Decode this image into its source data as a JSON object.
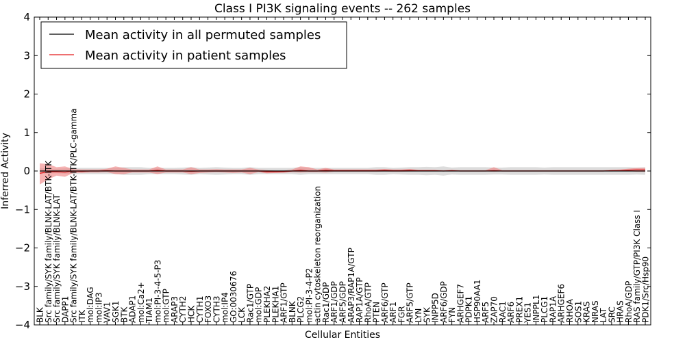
{
  "chart_data": {
    "type": "line",
    "title": "Class I PI3K signaling events -- 262 samples",
    "xlabel": "Cellular Entities",
    "ylabel": "Inferred Activity",
    "ylim": [
      -4,
      4
    ],
    "yticks": [
      -4,
      -3,
      -2,
      -1,
      0,
      1,
      2,
      3,
      4
    ],
    "grid": false,
    "legend_position": "top-left",
    "colors": {
      "permuted_line": "#000000",
      "patient_line": "#e41a1c",
      "permuted_band": "#c0c0c0",
      "patient_band": "#f08080"
    },
    "categories": [
      "BLK",
      "Src family/SYK family/BLNK-LAT/BTK-ITK",
      "Src family/SYK family/BLNK-LAT",
      "DAPP1",
      "Src family/SYK family/BLNK-LAT/BTK-ITK/PLC-gamma",
      "ITK",
      "mol:DAG",
      "mol:IP3",
      "VAV1",
      "SGK1",
      "BTK",
      "ADAP1",
      "mol:Ca2+",
      "TIAM1",
      "mol:PI-3-4-5-P3",
      "mol:GTP",
      "ARAP3",
      "CYTH2",
      "HCK",
      "CYTH1",
      "FOXO3",
      "CYTH3",
      "mol:IP4",
      "GO:0030676",
      "LCK",
      "Rac1/GTP",
      "mol:GDP",
      "PLEKHA2",
      "PLEKHA1",
      "ARF1/GTP",
      "BLNK",
      "PLCG2",
      "mol:PI-3-4-P2",
      "actin cytoskeleton reorganization",
      "Rac1/GDP",
      "ARF1/GDP",
      "ARF5/GDP",
      "ARAP3/RAP1A/GTP",
      "RAP1A/GTP",
      "RhoA/GTP",
      "PTEN",
      "ARF6/GTP",
      "ARF1",
      "FGR",
      "ARF5/GTP",
      "LYN",
      "SYK",
      "INPP5D",
      "ARF6/GDP",
      "FYN",
      "ARHGEF7",
      "PDPK1",
      "HSP90AA1",
      "ARF5",
      "ZAP70",
      "RAC1",
      "ARF6",
      "PREX1",
      "YES1",
      "INPPL1",
      "PLCG1",
      "RAP1A",
      "ARHGEF6",
      "RHOA",
      "SOS1",
      "KRAS",
      "NRAS",
      "LAT",
      "SRC",
      "HRAS",
      "RhoA/GDP",
      "RAS family/GTP/PI3K Class I",
      "PDK1/Src/Hsp90"
    ],
    "series": [
      {
        "name": "Mean activity in all permuted samples",
        "values": [
          0,
          0,
          0,
          0,
          0,
          0,
          0,
          0,
          0,
          0,
          0,
          0,
          0,
          0,
          0,
          0,
          0,
          0,
          0,
          0,
          0,
          0,
          0,
          0,
          0,
          0,
          0,
          0,
          0,
          0,
          0,
          0,
          0,
          0,
          0,
          0,
          0,
          0,
          0,
          0,
          0,
          0,
          0,
          0,
          0,
          0,
          0,
          0,
          0,
          0,
          0,
          0,
          0,
          0,
          0,
          0,
          0,
          0,
          0,
          0,
          0,
          0,
          0,
          0,
          0,
          0,
          0,
          0,
          0,
          0,
          0,
          0,
          0
        ],
        "lower": [
          -0.08,
          -0.06,
          -0.06,
          -0.07,
          -0.08,
          -0.08,
          -0.08,
          -0.08,
          -0.08,
          -0.08,
          -0.1,
          -0.1,
          -0.1,
          -0.08,
          -0.08,
          -0.08,
          -0.08,
          -0.09,
          -0.1,
          -0.08,
          -0.09,
          -0.1,
          -0.09,
          -0.08,
          -0.08,
          -0.1,
          -0.08,
          -0.08,
          -0.08,
          -0.08,
          -0.08,
          -0.1,
          -0.08,
          -0.08,
          -0.08,
          -0.08,
          -0.08,
          -0.08,
          -0.08,
          -0.08,
          -0.1,
          -0.1,
          -0.08,
          -0.09,
          -0.1,
          -0.1,
          -0.11,
          -0.1,
          -0.12,
          -0.09,
          -0.1,
          -0.1,
          -0.1,
          -0.1,
          -0.09,
          -0.09,
          -0.1,
          -0.1,
          -0.1,
          -0.1,
          -0.09,
          -0.1,
          -0.1,
          -0.1,
          -0.1,
          -0.1,
          -0.1,
          -0.1,
          -0.1,
          -0.1,
          -0.1,
          -0.09,
          -0.1
        ],
        "upper": [
          0.08,
          0.06,
          0.06,
          0.07,
          0.08,
          0.08,
          0.08,
          0.08,
          0.08,
          0.08,
          0.1,
          0.1,
          0.1,
          0.08,
          0.08,
          0.08,
          0.08,
          0.09,
          0.1,
          0.08,
          0.09,
          0.1,
          0.09,
          0.08,
          0.08,
          0.1,
          0.08,
          0.08,
          0.08,
          0.08,
          0.08,
          0.1,
          0.08,
          0.08,
          0.08,
          0.08,
          0.08,
          0.08,
          0.08,
          0.08,
          0.1,
          0.1,
          0.08,
          0.09,
          0.1,
          0.1,
          0.11,
          0.1,
          0.12,
          0.09,
          0.1,
          0.1,
          0.1,
          0.1,
          0.09,
          0.09,
          0.1,
          0.1,
          0.1,
          0.1,
          0.09,
          0.1,
          0.1,
          0.1,
          0.1,
          0.1,
          0.1,
          0.1,
          0.1,
          0.1,
          0.1,
          0.09,
          0.1
        ]
      },
      {
        "name": "Mean activity in patient samples",
        "values": [
          -0.06,
          -0.02,
          -0.02,
          -0.03,
          0,
          -0.01,
          0,
          0,
          0.01,
          0,
          0,
          0,
          0,
          0,
          0.02,
          0,
          0,
          0,
          -0.01,
          0,
          0,
          0,
          0,
          0,
          0,
          0,
          0,
          -0.02,
          -0.02,
          -0.02,
          0,
          0.02,
          0,
          0,
          0.02,
          0.01,
          0.01,
          0.01,
          0.01,
          0.01,
          0.01,
          0.02,
          0.01,
          0.01,
          0.02,
          0.01,
          0.01,
          0.01,
          0,
          0.01,
          0,
          0,
          0,
          0,
          0.01,
          0,
          0,
          0,
          0,
          0,
          0,
          0,
          0,
          0,
          0,
          0,
          0,
          0,
          0.01,
          0.01,
          0.02,
          0.03,
          0.03
        ],
        "lower": [
          -0.35,
          -0.22,
          -0.12,
          -0.15,
          -0.05,
          -0.05,
          -0.04,
          -0.04,
          -0.03,
          -0.08,
          -0.08,
          -0.04,
          -0.04,
          -0.04,
          -0.08,
          -0.04,
          -0.04,
          -0.04,
          -0.08,
          -0.05,
          -0.04,
          -0.03,
          -0.04,
          -0.05,
          -0.04,
          -0.08,
          -0.03,
          -0.06,
          -0.05,
          -0.04,
          -0.03,
          -0.04,
          -0.03,
          -0.03,
          -0.04,
          -0.02,
          -0.02,
          -0.02,
          -0.02,
          -0.02,
          -0.02,
          -0.01,
          -0.02,
          -0.02,
          -0.01,
          -0.01,
          -0.01,
          -0.01,
          -0.01,
          -0.01,
          -0.01,
          -0.01,
          -0.01,
          -0.01,
          -0.02,
          -0.01,
          -0.01,
          -0.01,
          -0.01,
          -0.01,
          -0.01,
          -0.01,
          -0.01,
          -0.01,
          -0.01,
          -0.01,
          -0.01,
          -0.01,
          -0.01,
          0,
          0,
          -0.02,
          -0.02
        ],
        "upper": [
          0.2,
          0.18,
          0.1,
          0.12,
          0.05,
          0.04,
          0.04,
          0.04,
          0.06,
          0.12,
          0.08,
          0.04,
          0.04,
          0.04,
          0.12,
          0.04,
          0.04,
          0.04,
          0.1,
          0.04,
          0.04,
          0.05,
          0.04,
          0.04,
          0.04,
          0.08,
          0.04,
          0.02,
          0.01,
          0.01,
          0.04,
          0.12,
          0.1,
          0.04,
          0.08,
          0.04,
          0.04,
          0.04,
          0.04,
          0.04,
          0.04,
          0.05,
          0.04,
          0.04,
          0.05,
          0.03,
          0.03,
          0.03,
          0.02,
          0.03,
          0.02,
          0.02,
          0.02,
          0.02,
          0.1,
          0.02,
          0.02,
          0.02,
          0.02,
          0.02,
          0.02,
          0.02,
          0.02,
          0.02,
          0.02,
          0.02,
          0.02,
          0.02,
          0.03,
          0.04,
          0.06,
          0.08,
          0.08
        ]
      }
    ]
  }
}
